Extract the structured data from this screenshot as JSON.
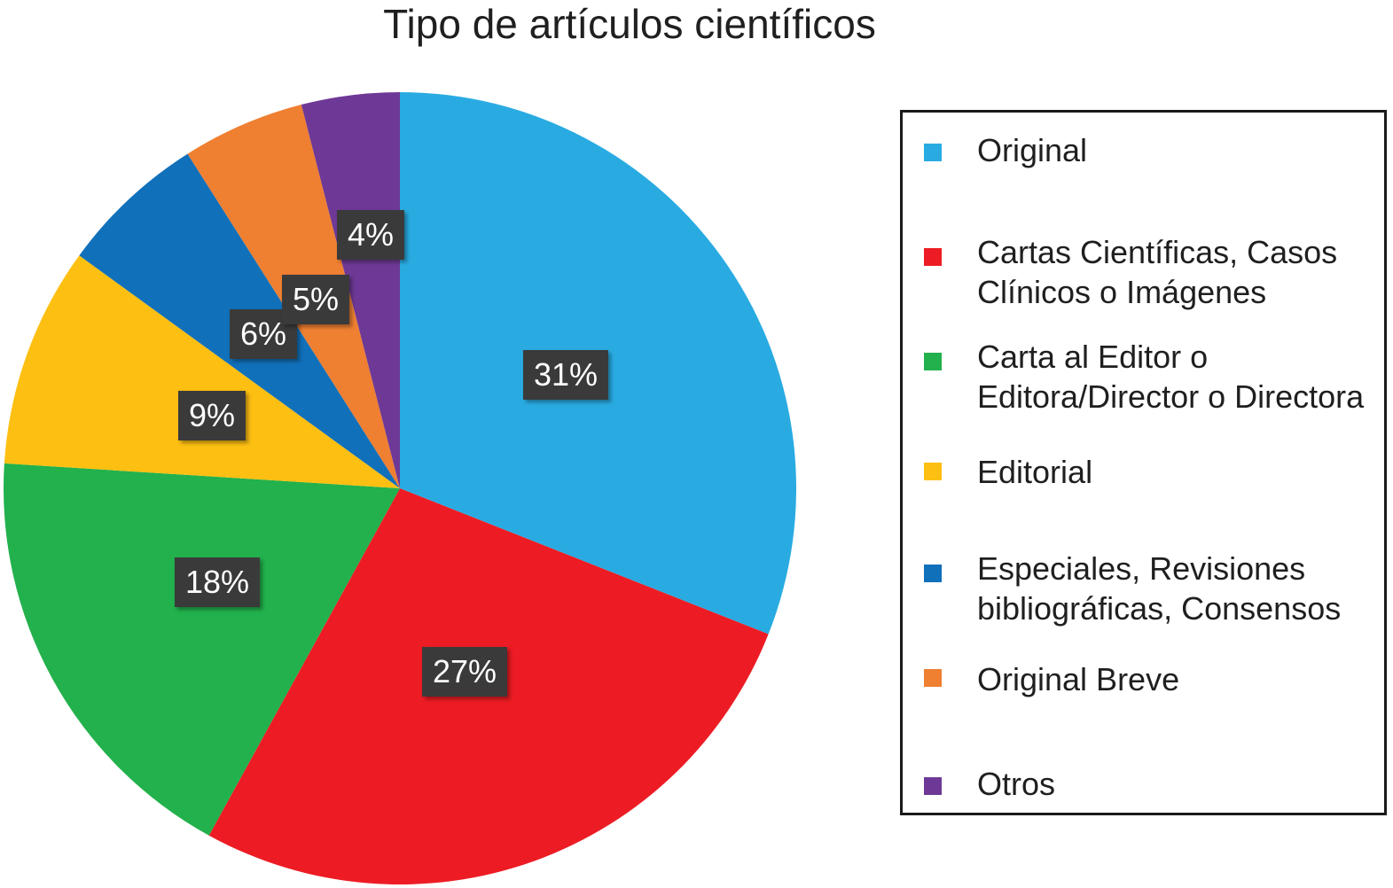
{
  "chart_data": {
    "type": "pie",
    "title": "Tipo de artículos científicos",
    "legend_position": "right",
    "slices": [
      {
        "label": "Original",
        "value": 31,
        "display": "31%",
        "color": "#29abe2"
      },
      {
        "label": "Cartas Científicas, Casos Clínicos o Imágenes",
        "value": 27,
        "display": "27%",
        "color": "#ed1c24"
      },
      {
        "label": "Carta al Editor o Editora/Director o Directora",
        "value": 18,
        "display": "18%",
        "color": "#22b14c"
      },
      {
        "label": "Editorial",
        "value": 9,
        "display": "9%",
        "color": "#fdbf12"
      },
      {
        "label": "Especiales, Revisiones bibliográficas, Consensos",
        "value": 6,
        "display": "6%",
        "color": "#1170ba"
      },
      {
        "label": "Original Breve",
        "value": 5,
        "display": "5%",
        "color": "#ef7f31"
      },
      {
        "label": "Otros",
        "value": 4,
        "display": "4%",
        "color": "#6e3996"
      }
    ]
  }
}
